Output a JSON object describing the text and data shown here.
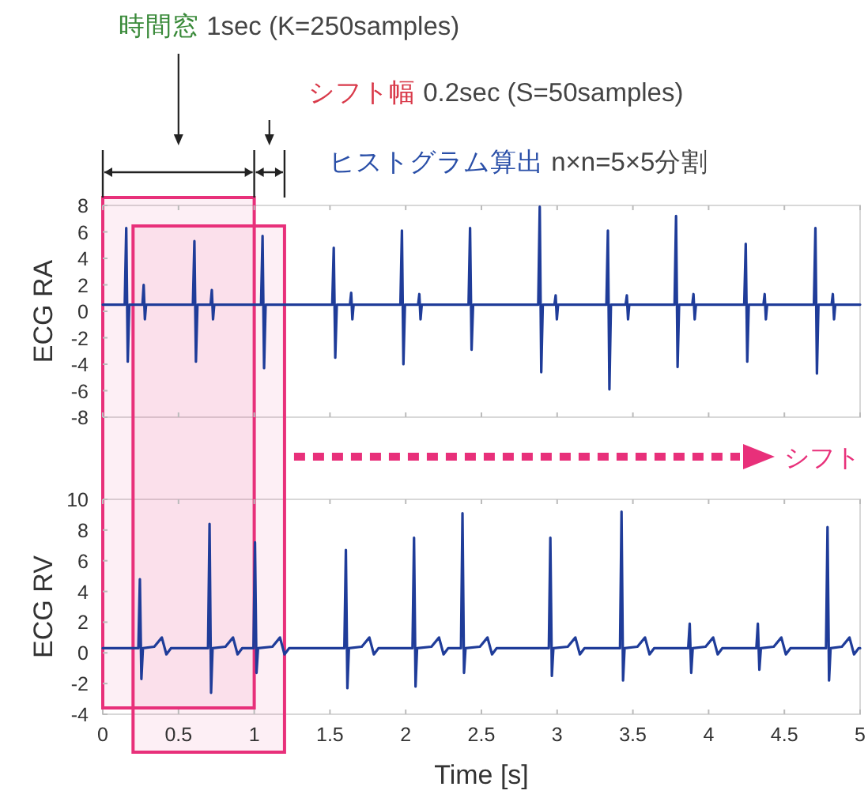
{
  "chart_data": [
    {
      "type": "line",
      "ylabel": "ECG RA",
      "xlim": [
        0,
        5
      ],
      "xticks": [
        0,
        0.5,
        1,
        1.5,
        2,
        2.5,
        3,
        3.5,
        4,
        4.5,
        5
      ],
      "ylim": [
        -8,
        8
      ],
      "yticks": [
        -8,
        -6,
        -4,
        -2,
        0,
        2,
        4,
        6,
        8
      ],
      "tick_labels": "y",
      "annotations": [
        "時間窓 1sec (K=250samples)",
        "シフト幅 0.2sec (S=50samples)",
        "ヒストグラム算出 n×n=5×5分割",
        "シフト"
      ],
      "bands": [
        {
          "axis": "x",
          "from": 0,
          "to": 1,
          "color": "#e8307a"
        },
        {
          "axis": "x",
          "from": 0.2,
          "to": 1.2,
          "color": "#e8307a"
        }
      ],
      "series": [
        {
          "color": "#1f3c99",
          "x": [
            0,
            0.145,
            0.155,
            0.165,
            0.175,
            0.262,
            0.27,
            0.278,
            0.286,
            0.595,
            0.605,
            0.615,
            0.625,
            0.712,
            0.72,
            0.728,
            0.736,
            1.045,
            1.055,
            1.065,
            1.075,
            1.515,
            1.525,
            1.535,
            1.545,
            1.632,
            1.64,
            1.648,
            1.656,
            1.965,
            1.975,
            1.985,
            1.995,
            2.082,
            2.09,
            2.098,
            2.106,
            2.415,
            2.425,
            2.435,
            2.445,
            2.875,
            2.885,
            2.895,
            2.905,
            2.982,
            2.99,
            2.998,
            3.006,
            3.325,
            3.335,
            3.345,
            3.355,
            3.452,
            3.46,
            3.468,
            3.476,
            3.775,
            3.785,
            3.795,
            3.805,
            3.892,
            3.9,
            3.908,
            3.916,
            4.235,
            4.245,
            4.255,
            4.265,
            4.362,
            4.37,
            4.378,
            4.386,
            4.695,
            4.705,
            4.715,
            4.725,
            4.812,
            4.82,
            4.828,
            4.836,
            5
          ],
          "values": [
            0.5,
            0.5,
            6.3,
            -3.8,
            0.5,
            0.5,
            2.0,
            -0.6,
            0.5,
            0.5,
            5.3,
            -3.8,
            0.5,
            0.5,
            1.6,
            -0.6,
            0.5,
            0.5,
            5.7,
            -4.3,
            0.5,
            0.5,
            4.8,
            -3.5,
            0.5,
            0.5,
            1.4,
            -0.6,
            0.5,
            0.5,
            6.1,
            -4.0,
            0.5,
            0.5,
            1.3,
            -0.6,
            0.5,
            0.5,
            6.3,
            -2.9,
            0.5,
            0.5,
            7.9,
            -4.6,
            0.5,
            0.5,
            1.2,
            -0.6,
            0.5,
            0.5,
            6.1,
            -5.9,
            0.5,
            0.5,
            1.2,
            -0.6,
            0.5,
            0.5,
            7.2,
            -4.2,
            0.5,
            0.5,
            1.3,
            -0.6,
            0.5,
            0.5,
            5.1,
            -3.8,
            0.5,
            0.5,
            1.3,
            -0.6,
            0.5,
            0.5,
            6.3,
            -4.7,
            0.5,
            0.5,
            1.3,
            -0.6,
            0.5,
            0.5
          ]
        }
      ]
    },
    {
      "type": "line",
      "ylabel": "ECG RV",
      "xlabel": "Time [s]",
      "xlim": [
        0,
        5
      ],
      "xticks": [
        0,
        0.5,
        1,
        1.5,
        2,
        2.5,
        3,
        3.5,
        4,
        4.5,
        5
      ],
      "ylim": [
        -4,
        10
      ],
      "yticks": [
        -4,
        -2,
        0,
        2,
        4,
        6,
        8,
        10
      ],
      "bands": [
        {
          "axis": "x",
          "from": 0,
          "to": 1,
          "color": "#e8307a"
        },
        {
          "axis": "x",
          "from": 0.2,
          "to": 1.2,
          "color": "#e8307a"
        }
      ],
      "series": [
        {
          "color": "#1f3c99",
          "x": [
            0,
            0.235,
            0.245,
            0.255,
            0.265,
            0.34,
            0.39,
            0.42,
            0.45,
            0.695,
            0.705,
            0.715,
            0.725,
            0.81,
            0.86,
            0.89,
            0.92,
            0.995,
            1.005,
            1.015,
            1.025,
            1.12,
            1.17,
            1.2,
            1.23,
            1.595,
            1.605,
            1.615,
            1.625,
            1.71,
            1.76,
            1.79,
            1.82,
            2.045,
            2.055,
            2.065,
            2.075,
            2.17,
            2.22,
            2.25,
            2.28,
            2.365,
            2.375,
            2.385,
            2.395,
            2.49,
            2.54,
            2.57,
            2.6,
            2.945,
            2.955,
            2.965,
            2.975,
            3.07,
            3.12,
            3.15,
            3.18,
            3.415,
            3.425,
            3.435,
            3.445,
            3.53,
            3.58,
            3.61,
            3.64,
            3.865,
            3.875,
            3.885,
            3.895,
            3.98,
            4.03,
            4.06,
            4.09,
            4.315,
            4.325,
            4.335,
            4.345,
            4.43,
            4.48,
            4.51,
            4.54,
            4.775,
            4.785,
            4.795,
            4.805,
            4.88,
            4.93,
            4.96,
            4.99,
            5
          ],
          "values": [
            0.3,
            0.3,
            4.8,
            -1.7,
            0.3,
            0.4,
            1.0,
            -0.1,
            0.3,
            0.3,
            8.4,
            -2.6,
            0.3,
            0.4,
            1.0,
            -0.1,
            0.3,
            0.3,
            7.2,
            -1.3,
            0.3,
            0.4,
            1.0,
            -0.1,
            0.3,
            0.3,
            6.7,
            -2.3,
            0.3,
            0.4,
            1.0,
            -0.1,
            0.3,
            0.3,
            7.5,
            -2.2,
            0.3,
            0.4,
            1.0,
            -0.1,
            0.3,
            0.3,
            9.1,
            -1.3,
            0.3,
            0.4,
            1.0,
            -0.1,
            0.3,
            0.3,
            7.5,
            -1.5,
            0.3,
            0.4,
            1.0,
            -0.1,
            0.3,
            0.3,
            9.2,
            -1.8,
            0.3,
            0.4,
            1.0,
            -0.1,
            0.3,
            0.3,
            1.9,
            -1.3,
            0.3,
            0.4,
            1.0,
            -0.1,
            0.3,
            0.3,
            1.9,
            -1.1,
            0.3,
            0.4,
            1.0,
            -0.1,
            0.3,
            0.3,
            8.2,
            -1.8,
            0.3,
            0.4,
            1.0,
            -0.1,
            0.3,
            0.3
          ]
        }
      ]
    }
  ]
}
